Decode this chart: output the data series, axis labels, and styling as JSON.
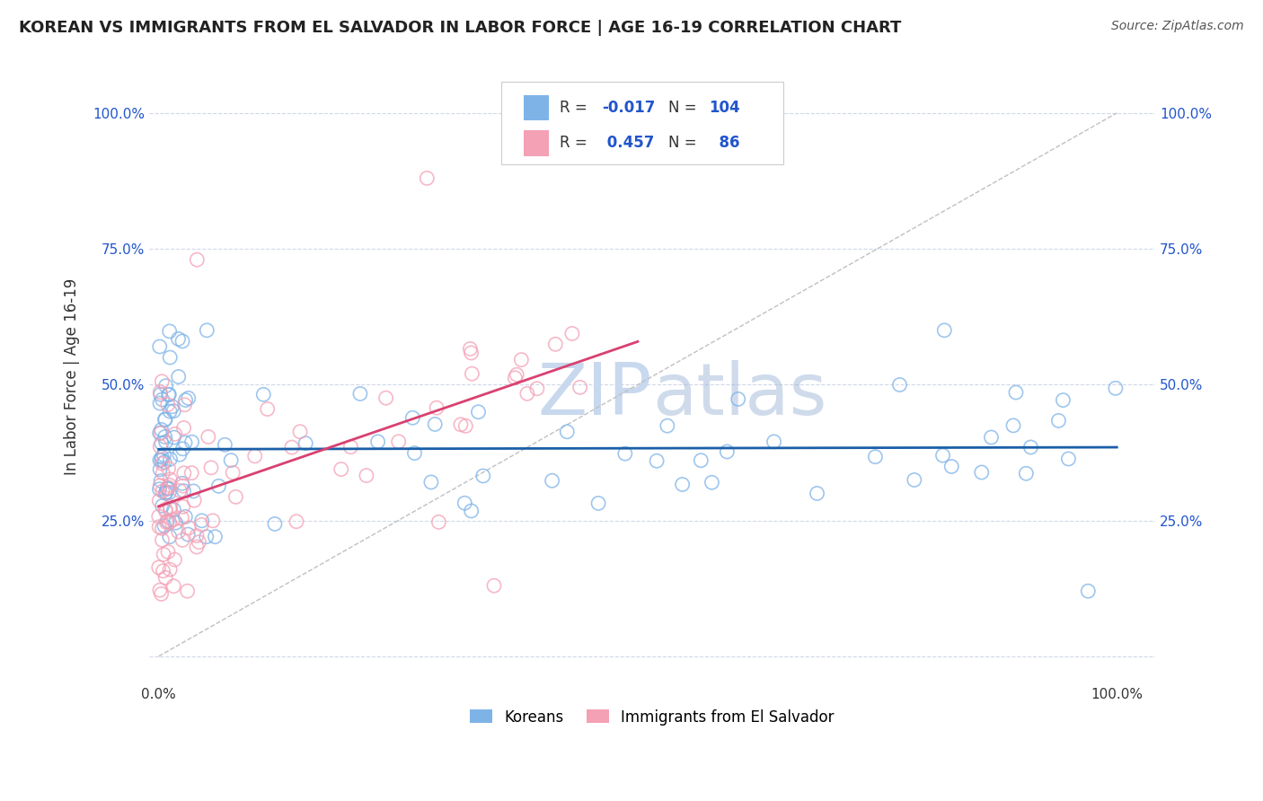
{
  "title": "KOREAN VS IMMIGRANTS FROM EL SALVADOR IN LABOR FORCE | AGE 16-19 CORRELATION CHART",
  "source": "Source: ZipAtlas.com",
  "ylabel": "In Labor Force | Age 16-19",
  "R1": -0.017,
  "N1": 104,
  "R2": 0.457,
  "N2": 86,
  "blue_color": "#7eb3e8",
  "pink_color": "#f4a0b5",
  "trend_blue_color": "#1a5fa8",
  "trend_pink_color": "#d94070",
  "trend_gray_color": "#c0c0c0",
  "watermark_color": "#c8d8ee",
  "background_color": "#ffffff",
  "grid_color": "#d0d8e8",
  "label_color": "#2255cc",
  "title_color": "#222222",
  "source_color": "#555555"
}
